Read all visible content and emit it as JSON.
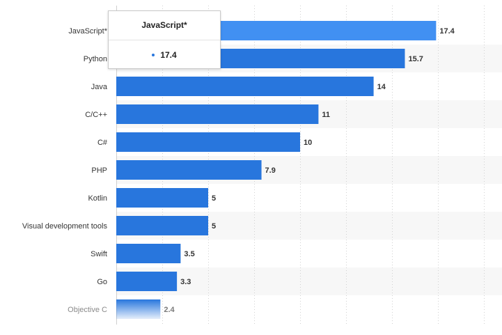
{
  "chart_data": {
    "type": "bar",
    "orientation": "horizontal",
    "categories": [
      "JavaScript*",
      "Python",
      "Java",
      "C/C++",
      "C#",
      "PHP",
      "Kotlin",
      "Visual development tools",
      "Swift",
      "Go",
      "Objective C"
    ],
    "values": [
      17.4,
      15.7,
      14,
      11,
      10,
      7.9,
      5,
      5,
      3.5,
      3.3,
      2.4
    ],
    "value_labels": [
      "17.4",
      "15.7",
      "14",
      "11",
      "10",
      "7.9",
      "5",
      "5",
      "3.5",
      "3.3",
      "2.4"
    ],
    "highlighted_index": 0,
    "faded_index": 10,
    "xlim": [
      0,
      20
    ],
    "grid": "vertical-dashed",
    "band_stripes": true,
    "colors": {
      "bar": "#2876dd",
      "bar_highlight": "#4190f2",
      "band": "#f7f7f7",
      "grid": "#d0d0d0"
    }
  },
  "tooltip": {
    "title": "JavaScript*",
    "value": "17.4"
  }
}
